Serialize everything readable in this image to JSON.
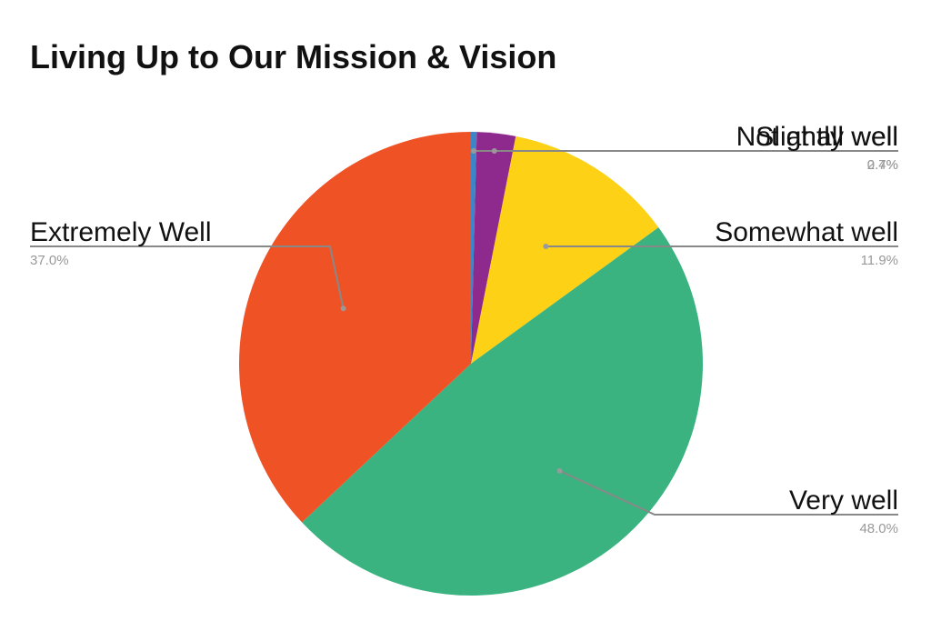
{
  "chart_data": {
    "type": "pie",
    "title": "Living Up to Our Mission & Vision",
    "categories": [
      "Not at all well",
      "Slightly well",
      "Somewhat well",
      "Very well",
      "Extremely Well"
    ],
    "values": [
      0.4,
      2.7,
      11.9,
      48.0,
      37.0
    ],
    "value_labels": [
      "0.4%",
      "2.7%",
      "11.9%",
      "48.0%",
      "37.0%"
    ],
    "colors": [
      "#3d85c6",
      "#8e2a8e",
      "#fcd116",
      "#3bb380",
      "#ef5225"
    ]
  }
}
